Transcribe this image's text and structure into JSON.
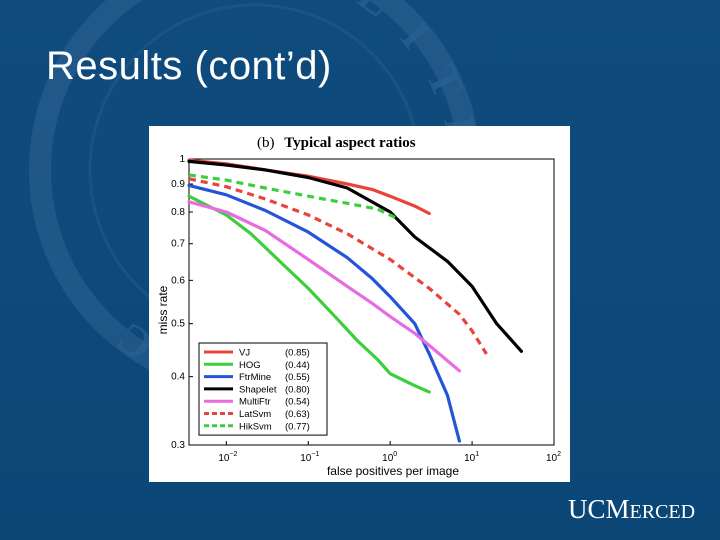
{
  "slide": {
    "title": "Results (cont’d)",
    "logo_text_big1": "UC",
    "logo_text_big2": "M",
    "logo_text_small": "ERCED",
    "background_color": "#0d4a7a",
    "seal_letters": [
      "F",
      "L",
      "I",
      "T",
      "H",
      "E",
      "R",
      "E",
      "B",
      "E",
      "M",
      "E",
      "R",
      "C"
    ]
  },
  "chart_data": {
    "type": "line",
    "title_prefix": "(b)",
    "title": "Typical aspect ratios",
    "xlabel": "false positives per image",
    "ylabel": "miss rate",
    "x_scale": "log",
    "y_scale": "log",
    "xlim": [
      0.0035,
      100
    ],
    "ylim": [
      0.3,
      1
    ],
    "x_ticks": [
      {
        "value": 0.01,
        "base": "10",
        "exp": "−2"
      },
      {
        "value": 0.1,
        "base": "10",
        "exp": "−1"
      },
      {
        "value": 1,
        "base": "10",
        "exp": "0"
      },
      {
        "value": 10,
        "base": "10",
        "exp": "1"
      },
      {
        "value": 100,
        "base": "10",
        "exp": "2"
      }
    ],
    "y_ticks": [
      {
        "value": 0.3,
        "label": "0.3"
      },
      {
        "value": 0.4,
        "label": "0.4"
      },
      {
        "value": 0.5,
        "label": "0.5"
      },
      {
        "value": 0.6,
        "label": "0.6"
      },
      {
        "value": 0.7,
        "label": "0.7"
      },
      {
        "value": 0.8,
        "label": "0.8"
      },
      {
        "value": 0.9,
        "label": "0.9"
      },
      {
        "value": 1,
        "label": "1"
      }
    ],
    "grid": false,
    "legend_position": "bottom-left",
    "series": [
      {
        "name": "VJ",
        "score": "(0.85)",
        "color": "#e8443a",
        "dashed": false,
        "x": [
          0.0035,
          0.01,
          0.03,
          0.1,
          0.3,
          0.6,
          1,
          2,
          3
        ],
        "y": [
          0.995,
          0.98,
          0.955,
          0.93,
          0.9,
          0.88,
          0.855,
          0.82,
          0.795
        ]
      },
      {
        "name": "HOG",
        "score": "(0.44)",
        "color": "#3ccf3c",
        "dashed": false,
        "x": [
          0.0035,
          0.01,
          0.02,
          0.05,
          0.1,
          0.2,
          0.4,
          0.7,
          1,
          2,
          3
        ],
        "y": [
          0.855,
          0.79,
          0.73,
          0.64,
          0.58,
          0.52,
          0.465,
          0.43,
          0.405,
          0.385,
          0.375
        ]
      },
      {
        "name": "FtrMine",
        "score": "(0.55)",
        "color": "#2454d8",
        "dashed": false,
        "x": [
          0.0035,
          0.01,
          0.03,
          0.1,
          0.3,
          0.6,
          1,
          2,
          3,
          5,
          7
        ],
        "y": [
          0.895,
          0.86,
          0.805,
          0.735,
          0.66,
          0.605,
          0.56,
          0.5,
          0.44,
          0.37,
          0.305
        ]
      },
      {
        "name": "Shapelet",
        "score": "(0.80)",
        "color": "#000000",
        "dashed": false,
        "x": [
          0.0035,
          0.01,
          0.03,
          0.1,
          0.3,
          1,
          2,
          5,
          10,
          20,
          40
        ],
        "y": [
          0.99,
          0.975,
          0.955,
          0.925,
          0.885,
          0.8,
          0.72,
          0.65,
          0.585,
          0.5,
          0.445
        ]
      },
      {
        "name": "MultiFtr",
        "score": "(0.54)",
        "color": "#e86be0",
        "dashed": false,
        "x": [
          0.0035,
          0.01,
          0.03,
          0.1,
          0.3,
          0.6,
          1,
          2,
          4,
          7
        ],
        "y": [
          0.835,
          0.8,
          0.74,
          0.655,
          0.585,
          0.545,
          0.515,
          0.48,
          0.44,
          0.41
        ]
      },
      {
        "name": "LatSvm",
        "score": "(0.63)",
        "color": "#e8443a",
        "dashed": true,
        "x": [
          0.0035,
          0.01,
          0.03,
          0.1,
          0.3,
          1,
          3,
          7,
          10,
          15
        ],
        "y": [
          0.92,
          0.89,
          0.845,
          0.79,
          0.73,
          0.655,
          0.58,
          0.52,
          0.485,
          0.44
        ]
      },
      {
        "name": "HikSvm",
        "score": "(0.77)",
        "color": "#3ccf3c",
        "dashed": true,
        "x": [
          0.0035,
          0.01,
          0.03,
          0.1,
          0.3,
          0.7,
          1.3
        ],
        "y": [
          0.935,
          0.915,
          0.885,
          0.855,
          0.83,
          0.81,
          0.775
        ]
      }
    ]
  }
}
